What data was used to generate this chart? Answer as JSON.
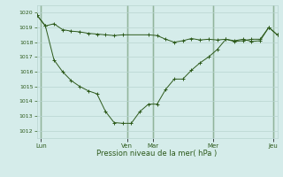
{
  "background_color": "#d5ecea",
  "grid_color": "#b8d4d0",
  "line_color": "#2d5a1b",
  "vline_color": "#3a6b28",
  "ylim": [
    1011.5,
    1020.5
  ],
  "yticks": [
    1012,
    1013,
    1014,
    1015,
    1016,
    1017,
    1018,
    1019,
    1020
  ],
  "xlabel": "Pression niveau de la mer( hPa )",
  "day_labels": [
    "Lun",
    "Ven",
    "Mar",
    "Mer",
    "Jeu"
  ],
  "day_positions": [
    0.5,
    10.5,
    13.5,
    20.5,
    27.5
  ],
  "vline_positions": [
    0.5,
    10.5,
    13.5,
    20.5,
    27.5
  ],
  "total_points": 29,
  "series1_x": [
    0,
    1,
    2,
    3,
    4,
    5,
    6,
    7,
    8,
    9,
    10,
    13,
    14,
    15,
    16,
    17,
    18,
    19,
    20,
    21,
    22,
    23,
    24,
    25,
    26,
    27,
    28
  ],
  "series1_y": [
    1019.85,
    1019.1,
    1019.25,
    1018.85,
    1018.75,
    1018.7,
    1018.6,
    1018.55,
    1018.5,
    1018.45,
    1018.5,
    1018.5,
    1018.45,
    1018.2,
    1018.0,
    1018.1,
    1018.25,
    1018.15,
    1018.2,
    1018.15,
    1018.2,
    1018.05,
    1018.1,
    1018.2,
    1018.2,
    1019.0,
    1018.5
  ],
  "series2_x": [
    0,
    1,
    2,
    3,
    4,
    5,
    6,
    7,
    8,
    9,
    10,
    11,
    12,
    13,
    14,
    15,
    16,
    17,
    18,
    19,
    20,
    21,
    22,
    23,
    24,
    25,
    26,
    27,
    28
  ],
  "series2_y": [
    1019.85,
    1019.1,
    1016.8,
    1016.0,
    1015.4,
    1015.0,
    1014.7,
    1014.5,
    1013.3,
    1012.55,
    1012.5,
    1012.5,
    1013.3,
    1013.8,
    1013.8,
    1014.8,
    1015.5,
    1015.5,
    1016.1,
    1016.6,
    1017.0,
    1017.5,
    1018.2,
    1018.1,
    1018.2,
    1018.05,
    1018.1,
    1019.0,
    1018.5
  ]
}
